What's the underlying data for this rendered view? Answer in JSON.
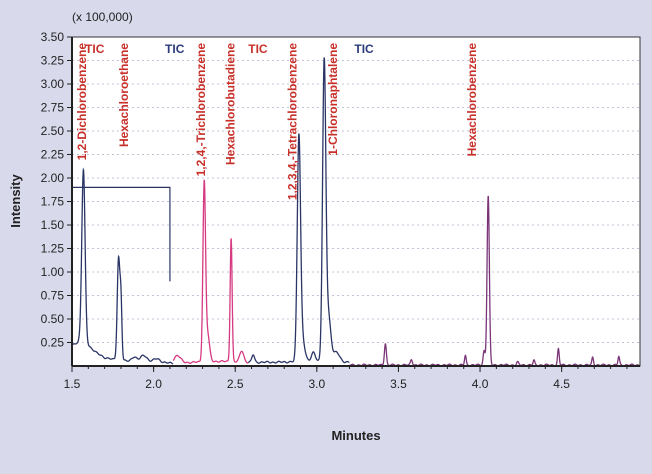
{
  "chart_data": {
    "type": "line",
    "scale_note": "(x 100,000)",
    "xlabel": "Minutes",
    "ylabel": "Intensity",
    "xlim": [
      1.5,
      4.98
    ],
    "ylim": [
      0,
      3.5
    ],
    "x_ticks": [
      "1.5",
      "2.0",
      "2.5",
      "3.0",
      "3.5",
      "4.0",
      "4.5"
    ],
    "y_ticks": [
      "0.25",
      "0.50",
      "0.75",
      "1.00",
      "1.25",
      "1.50",
      "1.75",
      "2.00",
      "2.25",
      "2.50",
      "2.75",
      "3.00",
      "3.25",
      "3.50"
    ],
    "grid": true,
    "colors": {
      "segment_1": "#2a3566",
      "segment_2": "#d63a82",
      "segment_3": "#2a3566",
      "segment_4": "#7a3478",
      "label": "#c8302a",
      "tic_red": "#c8302a",
      "tic_blue": "#2a3a7a",
      "axis": "#333333",
      "grid": "#c4c4d8"
    },
    "tic_labels": [
      {
        "text": "TIC",
        "x": 1.58,
        "color_key": "tic_red"
      },
      {
        "text": "TIC",
        "x": 2.07,
        "color_key": "tic_blue"
      },
      {
        "text": "TIC",
        "x": 2.58,
        "color_key": "tic_red"
      },
      {
        "text": "TIC",
        "x": 3.23,
        "color_key": "tic_blue"
      }
    ],
    "peak_labels": [
      {
        "text": "1,2-Dichlorobenzene",
        "x": 1.56
      },
      {
        "text": "Hexachloroethane",
        "x": 1.82
      },
      {
        "text": "1,2,4,-Trichlorobenzene",
        "x": 2.29
      },
      {
        "text": "Hexachlorobutadiene",
        "x": 2.47
      },
      {
        "text": "1,2,3,4,-Tetrachlorobenzene",
        "x": 2.85
      },
      {
        "text": "1-Chloronaphtalene",
        "x": 3.1
      },
      {
        "text": "Hexachlorobenzene",
        "x": 3.95
      }
    ],
    "bracket": {
      "x_start": 1.5,
      "x_end": 2.1,
      "y_top": 1.9,
      "y_bottom": 0.9
    },
    "series": [
      {
        "segment": 1,
        "color_key": "segment_1",
        "x_range": [
          1.5,
          2.12
        ],
        "peaks": [
          [
            1.57,
            1.82,
            0.01
          ],
          [
            1.785,
            1.07,
            0.008
          ],
          [
            1.8,
            0.6,
            0.006
          ],
          [
            1.88,
            0.05,
            0.015
          ],
          [
            1.94,
            0.07,
            0.02
          ],
          [
            2.02,
            0.04,
            0.02
          ]
        ],
        "baseline": [
          [
            1.5,
            0.22
          ],
          [
            1.53,
            0.25
          ],
          [
            1.56,
            0.28
          ],
          [
            1.6,
            0.22
          ],
          [
            1.65,
            0.14
          ],
          [
            1.7,
            0.09
          ],
          [
            1.75,
            0.07
          ],
          [
            1.85,
            0.05
          ],
          [
            2.0,
            0.04
          ],
          [
            2.12,
            0.03
          ]
        ]
      },
      {
        "segment": 2,
        "color_key": "segment_2",
        "x_range": [
          2.12,
          2.58
        ],
        "peaks": [
          [
            2.145,
            0.08,
            0.02
          ],
          [
            2.31,
            1.86,
            0.008
          ],
          [
            2.33,
            0.3,
            0.012
          ],
          [
            2.475,
            1.32,
            0.006
          ],
          [
            2.54,
            0.12,
            0.012
          ]
        ],
        "baseline": [
          [
            2.12,
            0.03
          ],
          [
            2.25,
            0.04
          ],
          [
            2.4,
            0.05
          ],
          [
            2.58,
            0.04
          ]
        ]
      },
      {
        "segment": 3,
        "color_key": "segment_3",
        "x_range": [
          2.58,
          3.2
        ],
        "peaks": [
          [
            2.61,
            0.08,
            0.008
          ],
          [
            2.89,
            2.33,
            0.01
          ],
          [
            2.91,
            0.25,
            0.015
          ],
          [
            2.98,
            0.1,
            0.012
          ],
          [
            3.045,
            3.1,
            0.01
          ],
          [
            3.07,
            0.5,
            0.015
          ],
          [
            3.12,
            0.1,
            0.02
          ]
        ],
        "baseline": [
          [
            2.58,
            0.04
          ],
          [
            2.75,
            0.04
          ],
          [
            2.95,
            0.05
          ],
          [
            3.2,
            0.04
          ]
        ]
      },
      {
        "segment": 4,
        "color_key": "segment_4",
        "x_range": [
          3.2,
          4.98
        ],
        "peaks": [
          [
            3.42,
            0.23,
            0.006
          ],
          [
            3.58,
            0.06,
            0.006
          ],
          [
            3.91,
            0.1,
            0.005
          ],
          [
            4.025,
            0.15,
            0.006
          ],
          [
            4.05,
            1.8,
            0.007
          ],
          [
            4.23,
            0.03,
            0.006
          ],
          [
            4.33,
            0.05,
            0.005
          ],
          [
            4.48,
            0.17,
            0.005
          ],
          [
            4.69,
            0.08,
            0.005
          ],
          [
            4.85,
            0.09,
            0.005
          ]
        ],
        "baseline": [
          [
            3.2,
            0.01
          ],
          [
            4.98,
            0.01
          ]
        ]
      }
    ]
  }
}
